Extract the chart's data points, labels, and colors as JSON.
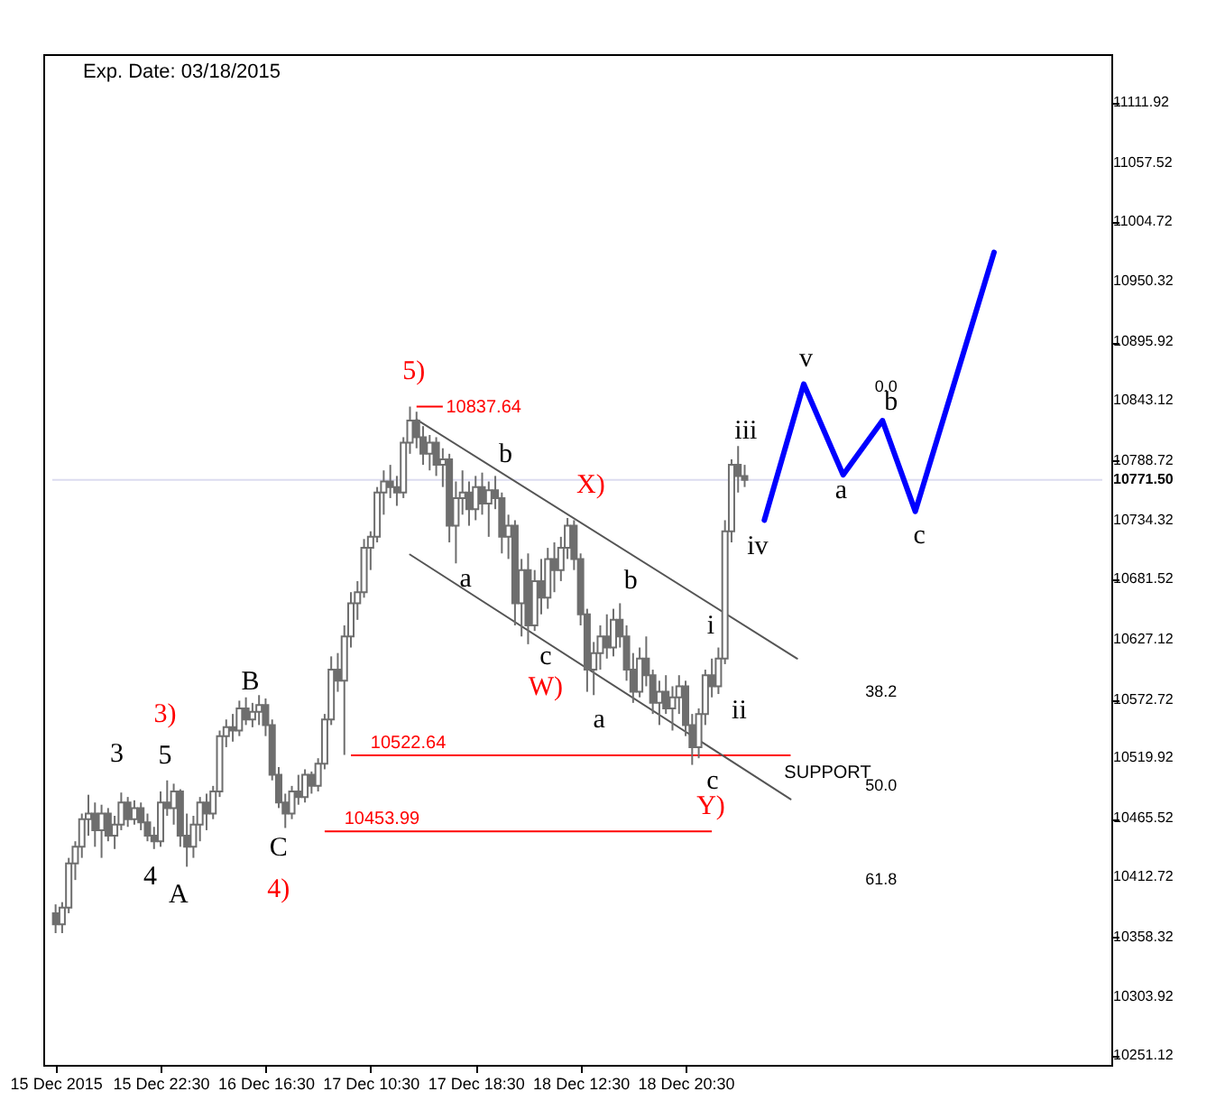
{
  "chart_data": {
    "type": "candlestick",
    "title": "Exp. Date: 03/18/2015",
    "categories": [
      "15 Dec 2015",
      null,
      null,
      null,
      null,
      null,
      null,
      null,
      null,
      null,
      null,
      null,
      null,
      null,
      null,
      null,
      "15 Dec 22:30",
      null,
      null,
      null,
      null,
      null,
      null,
      null,
      null,
      null,
      null,
      null,
      null,
      null,
      null,
      null,
      "16 Dec 16:30",
      null,
      null,
      null,
      null,
      null,
      null,
      null,
      null,
      null,
      null,
      null,
      null,
      null,
      null,
      null,
      "17 Dec 10:30",
      null,
      null,
      null,
      null,
      null,
      null,
      null,
      null,
      null,
      null,
      null,
      null,
      null,
      null,
      null,
      "17 Dec 18:30",
      null,
      null,
      null,
      null,
      null,
      null,
      null,
      null,
      null,
      null,
      null,
      null,
      null,
      null,
      null,
      "18 Dec 12:30",
      null,
      null,
      null,
      null,
      null,
      null,
      null,
      null,
      null,
      null,
      null,
      null,
      null,
      null,
      null,
      "18 Dec 20:30",
      null,
      null,
      null,
      null,
      null,
      null,
      null,
      null,
      null,
      null,
      null,
      null,
      null,
      null,
      null,
      null,
      null,
      null,
      null,
      null,
      null,
      null,
      null,
      null,
      null,
      null,
      null,
      null,
      null,
      null,
      null,
      null,
      null,
      null,
      null,
      null,
      null,
      null,
      null,
      null,
      null,
      null,
      null,
      null,
      null,
      null,
      null,
      null,
      null,
      null,
      null,
      null,
      null,
      null,
      null,
      null,
      null,
      null,
      null,
      null,
      null,
      null,
      null
    ],
    "ohlc": [
      [
        10380,
        10388,
        10362,
        10370
      ],
      [
        10370,
        10390,
        10362,
        10385
      ],
      [
        10385,
        10430,
        10380,
        10425
      ],
      [
        10425,
        10445,
        10410,
        10440
      ],
      [
        10440,
        10470,
        10430,
        10465
      ],
      [
        10465,
        10487,
        10450,
        10470
      ],
      [
        10470,
        10480,
        10440,
        10455
      ],
      [
        10455,
        10478,
        10430,
        10470
      ],
      [
        10470,
        10475,
        10445,
        10450
      ],
      [
        10450,
        10468,
        10438,
        10460
      ],
      [
        10460,
        10489,
        10455,
        10480
      ],
      [
        10480,
        10485,
        10458,
        10465
      ],
      [
        10465,
        10482,
        10460,
        10475
      ],
      [
        10475,
        10480,
        10455,
        10462
      ],
      [
        10462,
        10470,
        10445,
        10450
      ],
      [
        10450,
        10458,
        10438,
        10445
      ],
      [
        10445,
        10490,
        10440,
        10480
      ],
      [
        10480,
        10500,
        10468,
        10475
      ],
      [
        10475,
        10497,
        10460,
        10490
      ],
      [
        10490,
        10492,
        10440,
        10450
      ],
      [
        10450,
        10470,
        10422,
        10440
      ],
      [
        10440,
        10468,
        10430,
        10460
      ],
      [
        10460,
        10485,
        10445,
        10480
      ],
      [
        10480,
        10488,
        10455,
        10470
      ],
      [
        10470,
        10495,
        10465,
        10490
      ],
      [
        10490,
        10545,
        10485,
        10540
      ],
      [
        10540,
        10555,
        10530,
        10548
      ],
      [
        10548,
        10560,
        10535,
        10545
      ],
      [
        10545,
        10572,
        10540,
        10565
      ],
      [
        10565,
        10575,
        10550,
        10555
      ],
      [
        10555,
        10570,
        10548,
        10562
      ],
      [
        10562,
        10577,
        10550,
        10568
      ],
      [
        10568,
        10574,
        10540,
        10550
      ],
      [
        10550,
        10555,
        10500,
        10505
      ],
      [
        10505,
        10512,
        10475,
        10480
      ],
      [
        10480,
        10488,
        10457,
        10470
      ],
      [
        10470,
        10495,
        10465,
        10490
      ],
      [
        10490,
        10505,
        10478,
        10485
      ],
      [
        10485,
        10510,
        10480,
        10505
      ],
      [
        10505,
        10508,
        10488,
        10495
      ],
      [
        10495,
        10520,
        10490,
        10515
      ],
      [
        10515,
        10560,
        10510,
        10555
      ],
      [
        10555,
        10612,
        10550,
        10600
      ],
      [
        10600,
        10615,
        10580,
        10590
      ],
      [
        10590,
        10640,
        10523,
        10630
      ],
      [
        10630,
        10670,
        10620,
        10660
      ],
      [
        10660,
        10680,
        10645,
        10670
      ],
      [
        10670,
        10718,
        10665,
        10710
      ],
      [
        10710,
        10725,
        10690,
        10720
      ],
      [
        10720,
        10765,
        10715,
        10760
      ],
      [
        10760,
        10780,
        10740,
        10770
      ],
      [
        10770,
        10785,
        10755,
        10765
      ],
      [
        10765,
        10775,
        10748,
        10760
      ],
      [
        10760,
        10810,
        10755,
        10805
      ],
      [
        10805,
        10837.64,
        10795,
        10825
      ],
      [
        10825,
        10833,
        10800,
        10810
      ],
      [
        10810,
        10820,
        10785,
        10795
      ],
      [
        10795,
        10812,
        10780,
        10805
      ],
      [
        10805,
        10810,
        10775,
        10785
      ],
      [
        10785,
        10800,
        10765,
        10790
      ],
      [
        10790,
        10795,
        10715,
        10730
      ],
      [
        10730,
        10770,
        10696,
        10755
      ],
      [
        10755,
        10780,
        10740,
        10760
      ],
      [
        10760,
        10770,
        10730,
        10745
      ],
      [
        10745,
        10775,
        10735,
        10765
      ],
      [
        10765,
        10778,
        10740,
        10750
      ],
      [
        10750,
        10770,
        10720,
        10762
      ],
      [
        10762,
        10775,
        10745,
        10755
      ],
      [
        10755,
        10760,
        10705,
        10720
      ],
      [
        10720,
        10740,
        10700,
        10730
      ],
      [
        10730,
        10735,
        10640,
        10660
      ],
      [
        10660,
        10700,
        10630,
        10690
      ],
      [
        10690,
        10705,
        10623,
        10640
      ],
      [
        10640,
        10690,
        10635,
        10680
      ],
      [
        10680,
        10700,
        10650,
        10665
      ],
      [
        10665,
        10710,
        10655,
        10700
      ],
      [
        10700,
        10715,
        10670,
        10690
      ],
      [
        10690,
        10720,
        10680,
        10710
      ],
      [
        10710,
        10737,
        10700,
        10730
      ],
      [
        10730,
        10735,
        10690,
        10700
      ],
      [
        10700,
        10705,
        10640,
        10650
      ],
      [
        10650,
        10655,
        10580,
        10600
      ],
      [
        10600,
        10625,
        10577,
        10615
      ],
      [
        10615,
        10640,
        10600,
        10630
      ],
      [
        10630,
        10650,
        10610,
        10620
      ],
      [
        10620,
        10655,
        10612,
        10645
      ],
      [
        10645,
        10660,
        10620,
        10630
      ],
      [
        10630,
        10640,
        10590,
        10600
      ],
      [
        10600,
        10615,
        10570,
        10580
      ],
      [
        10580,
        10620,
        10575,
        10610
      ],
      [
        10610,
        10630,
        10585,
        10595
      ],
      [
        10595,
        10600,
        10560,
        10570
      ],
      [
        10570,
        10590,
        10550,
        10580
      ],
      [
        10580,
        10595,
        10560,
        10565
      ],
      [
        10565,
        10585,
        10545,
        10575
      ],
      [
        10575,
        10595,
        10560,
        10585
      ],
      [
        10585,
        10590,
        10540,
        10550
      ],
      [
        10550,
        10560,
        10514,
        10530
      ],
      [
        10530,
        10565,
        10520,
        10560
      ],
      [
        10560,
        10600,
        10550,
        10595
      ],
      [
        10595,
        10610,
        10575,
        10585
      ],
      [
        10585,
        10620,
        10578,
        10610
      ],
      [
        10610,
        10735,
        10605,
        10725
      ],
      [
        10725,
        10790,
        10715,
        10785
      ],
      [
        10785,
        10802,
        10760,
        10775
      ],
      [
        10775,
        10785,
        10765,
        10771.5
      ],
      null,
      null,
      null,
      null,
      null,
      null,
      null,
      null,
      null,
      null,
      null,
      null,
      null,
      null,
      null,
      null,
      null,
      null,
      null,
      null,
      null,
      null,
      null,
      null,
      null,
      null,
      null,
      null,
      null,
      null,
      null,
      null,
      null,
      null,
      null,
      null,
      null,
      null,
      null,
      null,
      null,
      null,
      null,
      null,
      null,
      null,
      null,
      null,
      null,
      null,
      null,
      null,
      null,
      null
    ],
    "series": [
      {
        "type": "line",
        "color": "#0000ff",
        "values": [
          null,
          null,
          null,
          null,
          null,
          null,
          null,
          null,
          null,
          null,
          null,
          null,
          null,
          null,
          null,
          null,
          null,
          null,
          null,
          null,
          null,
          null,
          null,
          null,
          null,
          null,
          null,
          null,
          null,
          null,
          null,
          null,
          null,
          null,
          null,
          null,
          null,
          null,
          null,
          null,
          null,
          null,
          null,
          null,
          null,
          null,
          null,
          null,
          null,
          null,
          null,
          null,
          null,
          null,
          null,
          null,
          null,
          null,
          null,
          null,
          null,
          null,
          null,
          null,
          null,
          null,
          null,
          null,
          null,
          null,
          null,
          null,
          null,
          null,
          null,
          null,
          null,
          null,
          null,
          null,
          null,
          null,
          null,
          null,
          null,
          null,
          null,
          null,
          null,
          null,
          null,
          null,
          null,
          null,
          null,
          null,
          null,
          null,
          null,
          null,
          null,
          null,
          null,
          null,
          null,
          null,
          null,
          null,
          10735,
          null,
          null,
          null,
          null,
          null,
          10858,
          null,
          null,
          null,
          null,
          null,
          10776,
          null,
          null,
          null,
          null,
          null,
          10825,
          null,
          null,
          null,
          null,
          10743,
          null,
          null,
          null,
          null,
          null,
          null,
          null,
          null,
          null,
          null,
          null,
          10977,
          null,
          null,
          null,
          null,
          null,
          null,
          null,
          null,
          null,
          null,
          null,
          null,
          null,
          null,
          null,
          null
        ]
      },
      {
        "type": "line",
        "color": "#555555",
        "values": [
          null,
          null,
          null,
          null,
          null,
          null,
          null,
          null,
          null,
          null,
          null,
          null,
          null,
          null,
          null,
          null,
          null,
          null,
          null,
          null,
          null,
          null,
          null,
          null,
          null,
          null,
          null,
          null,
          null,
          null,
          null,
          null,
          null,
          null,
          null,
          null,
          null,
          null,
          null,
          null,
          null,
          null,
          null,
          null,
          null,
          null,
          null,
          null,
          null,
          null,
          null,
          null,
          null,
          null,
          null,
          10826,
          null,
          null,
          null,
          null,
          null,
          null,
          null,
          null,
          null,
          null,
          null,
          null,
          null,
          null,
          null,
          null,
          null,
          null,
          null,
          null,
          null,
          null,
          null,
          null,
          null,
          null,
          null,
          null,
          null,
          null,
          null,
          null,
          null,
          null,
          null,
          null,
          null,
          null,
          null,
          null,
          null,
          null,
          null,
          null,
          null,
          null,
          null,
          null,
          null,
          null,
          null,
          null,
          null,
          null,
          null,
          null,
          null,
          10610,
          null,
          null,
          null,
          null,
          null,
          null,
          null,
          null,
          null,
          null,
          null,
          null,
          null,
          null,
          null,
          null,
          null,
          null,
          null,
          null,
          null,
          null,
          null,
          null,
          null,
          null,
          null,
          null,
          null,
          null,
          null,
          null,
          null,
          null,
          null,
          null,
          null,
          null,
          null,
          null,
          null,
          null,
          null,
          null,
          null,
          null
        ]
      },
      {
        "type": "line",
        "color": "#555555",
        "values": [
          null,
          null,
          null,
          null,
          null,
          null,
          null,
          null,
          null,
          null,
          null,
          null,
          null,
          null,
          null,
          null,
          null,
          null,
          null,
          null,
          null,
          null,
          null,
          null,
          null,
          null,
          null,
          null,
          null,
          null,
          null,
          null,
          null,
          null,
          null,
          null,
          null,
          null,
          null,
          null,
          null,
          null,
          null,
          null,
          null,
          null,
          null,
          null,
          null,
          null,
          null,
          null,
          null,
          null,
          10704,
          null,
          null,
          null,
          null,
          null,
          null,
          null,
          null,
          null,
          null,
          null,
          null,
          null,
          null,
          null,
          null,
          null,
          null,
          null,
          null,
          null,
          null,
          null,
          null,
          null,
          null,
          null,
          null,
          null,
          null,
          null,
          null,
          null,
          null,
          null,
          null,
          null,
          null,
          null,
          null,
          null,
          null,
          null,
          null,
          null,
          null,
          null,
          null,
          null,
          null,
          null,
          null,
          null,
          null,
          null,
          null,
          null,
          10483,
          null,
          null,
          null,
          null,
          null,
          null,
          null,
          null,
          null,
          null,
          null,
          null,
          null,
          null,
          null,
          null,
          null,
          null,
          null,
          null,
          null,
          null,
          null,
          null,
          null,
          null,
          null,
          null,
          null,
          null,
          null,
          null,
          null,
          null,
          null,
          null,
          null,
          null,
          null,
          null,
          null,
          null,
          null,
          null,
          null,
          null,
          null
        ]
      }
    ],
    "color": "#6e6e6e",
    "ylim": [
      10243,
      11156
    ],
    "yticks": [
      10251.12,
      10303.92,
      10358.32,
      10412.72,
      10465.52,
      10519.92,
      10572.72,
      10627.12,
      10681.52,
      10734.32,
      10788.72,
      10843.12,
      10895.92,
      10950.32,
      11004.72,
      11057.52,
      11111.92
    ],
    "ref_lines": [
      {
        "axis": "y",
        "value": 10837.64,
        "label": "10837.64",
        "color": "#ff0000"
      },
      {
        "axis": "y",
        "value": 10522.64,
        "label": "10522.64",
        "color": "#ff0000"
      },
      {
        "axis": "y",
        "value": 10453.99,
        "label": "10453.99",
        "color": "#ff0000"
      },
      {
        "axis": "y",
        "value": 10771.5,
        "label": "10771.50",
        "color": "#dcdcf0"
      }
    ],
    "annotations": [
      "5)",
      "3)",
      "4)",
      "W)",
      "X)",
      "Y)",
      "3",
      "5",
      "4",
      "A",
      "B",
      "C",
      "b",
      "a",
      "c",
      "b",
      "a",
      "c",
      "i",
      "ii",
      "iii",
      "iv",
      "v",
      "a",
      "b",
      "c",
      "0.0",
      "38.2",
      "50.0",
      "61.8",
      "SUPPORT"
    ]
  }
}
